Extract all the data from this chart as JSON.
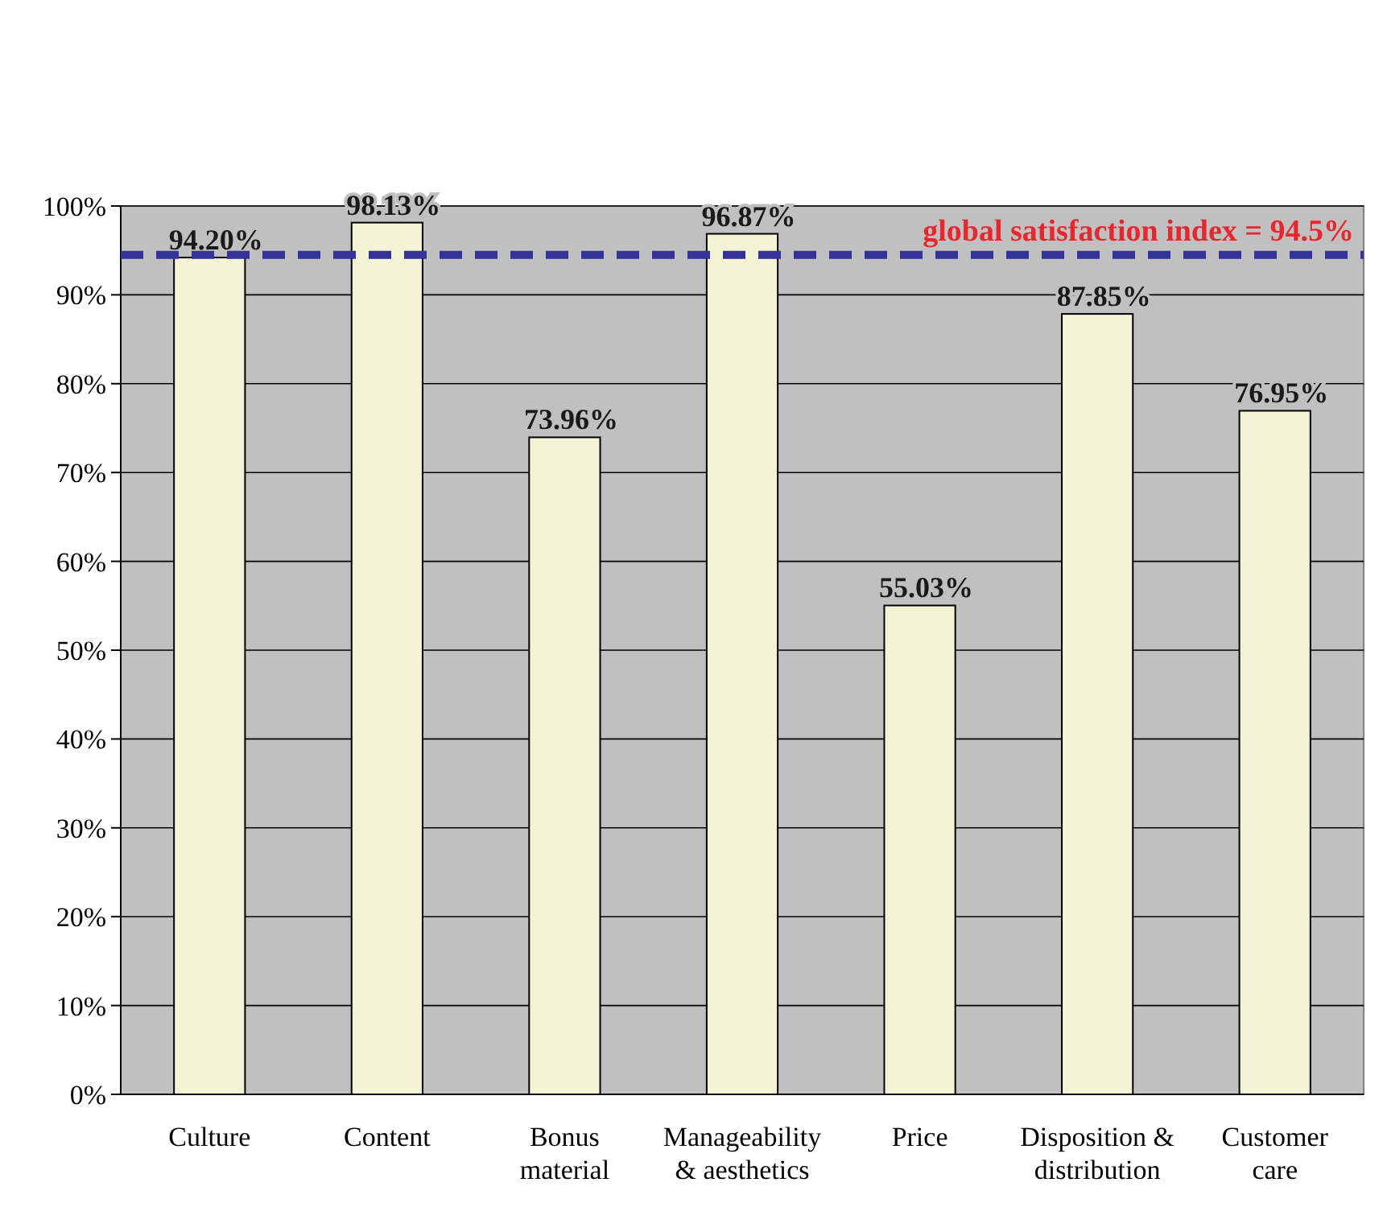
{
  "chart_data": {
    "type": "bar",
    "categories": [
      "Culture",
      "Content",
      "Bonus material",
      "Manageability & aesthetics",
      "Price",
      "Disposition & distribution",
      "Customer care"
    ],
    "values": [
      94.2,
      98.13,
      73.96,
      96.87,
      55.03,
      87.85,
      76.95
    ],
    "value_labels": [
      "94.20%",
      "98.13%",
      "73.96%",
      "96.87%",
      "55.03%",
      "87.85%",
      "76.95%"
    ],
    "color": "#f5f3d5",
    "ylim": [
      0,
      100
    ],
    "yticks": [
      {
        "value": 0,
        "label": "0%"
      },
      {
        "value": 10,
        "label": "10%"
      },
      {
        "value": 20,
        "label": "20%"
      },
      {
        "value": 30,
        "label": "30%"
      },
      {
        "value": 40,
        "label": "40%"
      },
      {
        "value": 50,
        "label": "50%"
      },
      {
        "value": 60,
        "label": "60%"
      },
      {
        "value": 70,
        "label": "70%"
      },
      {
        "value": 80,
        "label": "80%"
      },
      {
        "value": 90,
        "label": "90%"
      },
      {
        "value": 100,
        "label": "100%"
      }
    ],
    "grid": "y",
    "ref_lines": [
      {
        "axis": "y",
        "value": 94.5,
        "label": "global satisfaction index = 94.5%",
        "color": "#333399",
        "line_style": "dashed"
      }
    ]
  }
}
